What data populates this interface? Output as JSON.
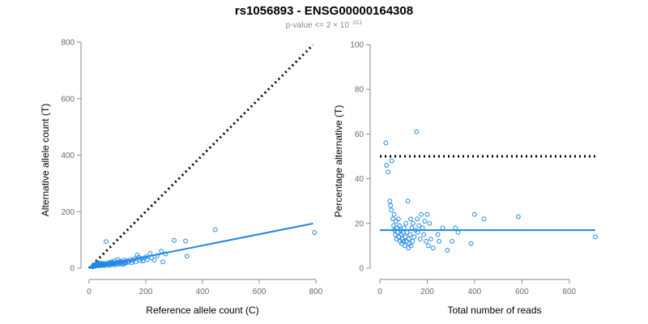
{
  "figure": {
    "title": "rs1056893 - ENSG00000164308",
    "subtitle_prefix": "p-value <= 2",
    "subtitle_times": "×",
    "subtitle_base": "10",
    "subtitle_exp": "-311"
  },
  "colors": {
    "point": "#1e88e5",
    "fit_line": "#1e88e5",
    "reference_line": "#000000",
    "axis": "#888888"
  },
  "chart_data": [
    {
      "type": "scatter",
      "xlabel": "Reference allele count (C)",
      "ylabel": "Alternative allele count (T)",
      "xlim": [
        0,
        800
      ],
      "ylim": [
        0,
        800
      ],
      "xticks": [
        0,
        200,
        400,
        600,
        800
      ],
      "yticks": [
        0,
        200,
        400,
        600,
        800
      ],
      "reference_line": {
        "style": "dotted",
        "from": [
          0,
          0
        ],
        "to": [
          790,
          790
        ]
      },
      "fit_line": {
        "style": "solid",
        "from": [
          0,
          0
        ],
        "to": [
          790,
          158
        ]
      },
      "points": [
        [
          12,
          4
        ],
        [
          14,
          8
        ],
        [
          16,
          6
        ],
        [
          18,
          10
        ],
        [
          20,
          12
        ],
        [
          22,
          7
        ],
        [
          25,
          9
        ],
        [
          27,
          14
        ],
        [
          28,
          20
        ],
        [
          30,
          11
        ],
        [
          32,
          15
        ],
        [
          34,
          8
        ],
        [
          36,
          12
        ],
        [
          38,
          18
        ],
        [
          40,
          9
        ],
        [
          42,
          13
        ],
        [
          44,
          16
        ],
        [
          46,
          10
        ],
        [
          48,
          14
        ],
        [
          50,
          11
        ],
        [
          52,
          17
        ],
        [
          55,
          9
        ],
        [
          58,
          13
        ],
        [
          60,
          94
        ],
        [
          62,
          15
        ],
        [
          65,
          12
        ],
        [
          68,
          19
        ],
        [
          70,
          14
        ],
        [
          72,
          10
        ],
        [
          75,
          18
        ],
        [
          78,
          22
        ],
        [
          80,
          16
        ],
        [
          82,
          13
        ],
        [
          85,
          20
        ],
        [
          88,
          15
        ],
        [
          90,
          26
        ],
        [
          92,
          12
        ],
        [
          95,
          18
        ],
        [
          98,
          21
        ],
        [
          100,
          16
        ],
        [
          102,
          30
        ],
        [
          105,
          14
        ],
        [
          108,
          19
        ],
        [
          110,
          24
        ],
        [
          112,
          17
        ],
        [
          115,
          22
        ],
        [
          118,
          13
        ],
        [
          120,
          20
        ],
        [
          122,
          28
        ],
        [
          125,
          16
        ],
        [
          128,
          23
        ],
        [
          130,
          18
        ],
        [
          135,
          26
        ],
        [
          140,
          21
        ],
        [
          145,
          30
        ],
        [
          150,
          19
        ],
        [
          155,
          27
        ],
        [
          160,
          33
        ],
        [
          165,
          22
        ],
        [
          170,
          46
        ],
        [
          175,
          38
        ],
        [
          180,
          27
        ],
        [
          185,
          34
        ],
        [
          190,
          25
        ],
        [
          200,
          40
        ],
        [
          205,
          30
        ],
        [
          215,
          52
        ],
        [
          220,
          36
        ],
        [
          230,
          28
        ],
        [
          240,
          44
        ],
        [
          255,
          60
        ],
        [
          260,
          22
        ],
        [
          270,
          50
        ],
        [
          300,
          98
        ],
        [
          340,
          96
        ],
        [
          345,
          42
        ],
        [
          445,
          136
        ],
        [
          795,
          126
        ]
      ]
    },
    {
      "type": "scatter",
      "xlabel": "Total number of reads",
      "ylabel": "Percentage alternative (T)",
      "xlim": [
        0,
        900
      ],
      "ylim": [
        0,
        100
      ],
      "xticks": [
        0,
        200,
        400,
        600,
        800
      ],
      "yticks": [
        0,
        20,
        40,
        60,
        80,
        100
      ],
      "reference_line": {
        "style": "dotted",
        "from": [
          0,
          50
        ],
        "to": [
          910,
          50
        ]
      },
      "fit_line": {
        "style": "solid",
        "from": [
          0,
          17
        ],
        "to": [
          910,
          17
        ]
      },
      "points": [
        [
          25,
          56
        ],
        [
          28,
          46
        ],
        [
          35,
          43
        ],
        [
          42,
          30
        ],
        [
          45,
          28
        ],
        [
          48,
          26
        ],
        [
          50,
          48
        ],
        [
          55,
          22
        ],
        [
          58,
          19
        ],
        [
          60,
          24
        ],
        [
          62,
          17
        ],
        [
          65,
          15
        ],
        [
          68,
          21
        ],
        [
          70,
          13
        ],
        [
          72,
          18
        ],
        [
          75,
          16
        ],
        [
          78,
          22
        ],
        [
          80,
          14
        ],
        [
          82,
          19
        ],
        [
          85,
          12
        ],
        [
          88,
          17
        ],
        [
          90,
          15
        ],
        [
          92,
          11
        ],
        [
          95,
          13
        ],
        [
          98,
          16
        ],
        [
          100,
          12
        ],
        [
          102,
          18
        ],
        [
          105,
          10
        ],
        [
          108,
          14
        ],
        [
          110,
          20
        ],
        [
          112,
          12
        ],
        [
          115,
          16
        ],
        [
          118,
          30
        ],
        [
          120,
          9
        ],
        [
          122,
          13
        ],
        [
          125,
          11
        ],
        [
          128,
          15
        ],
        [
          130,
          22
        ],
        [
          132,
          10
        ],
        [
          135,
          18
        ],
        [
          138,
          12
        ],
        [
          140,
          20
        ],
        [
          145,
          14
        ],
        [
          150,
          17
        ],
        [
          155,
          61
        ],
        [
          158,
          22
        ],
        [
          160,
          16
        ],
        [
          165,
          19
        ],
        [
          170,
          13
        ],
        [
          175,
          24
        ],
        [
          180,
          18
        ],
        [
          185,
          15
        ],
        [
          190,
          21
        ],
        [
          195,
          12
        ],
        [
          200,
          24
        ],
        [
          205,
          10
        ],
        [
          210,
          20
        ],
        [
          215,
          13
        ],
        [
          225,
          9
        ],
        [
          245,
          15
        ],
        [
          250,
          12
        ],
        [
          265,
          18
        ],
        [
          285,
          8
        ],
        [
          305,
          12
        ],
        [
          320,
          18
        ],
        [
          330,
          16
        ],
        [
          385,
          11
        ],
        [
          400,
          24
        ],
        [
          440,
          22
        ],
        [
          585,
          23
        ],
        [
          910,
          14
        ]
      ]
    }
  ]
}
